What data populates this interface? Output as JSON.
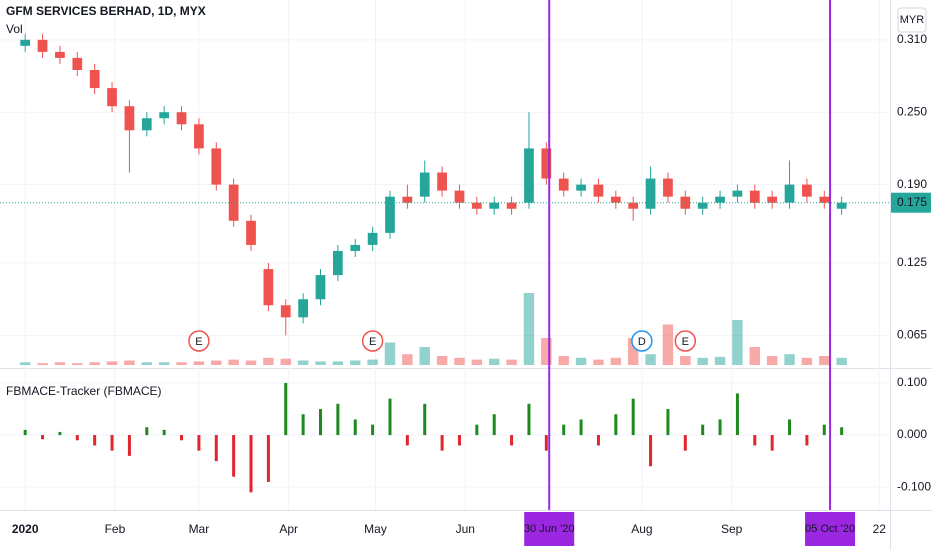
{
  "chart_data": {
    "type": "candlestick",
    "title": "GFM SERVICES BERHAD, 1D, MYX",
    "currency": "MYR",
    "x": [
      1,
      7,
      13,
      19,
      25,
      31,
      37,
      43,
      49,
      55,
      61,
      67,
      73,
      79,
      85,
      91,
      97,
      103,
      109,
      115,
      121,
      127,
      133,
      139,
      145,
      151,
      157,
      163,
      169,
      175,
      181,
      187,
      193,
      199,
      205,
      211,
      217,
      223,
      229,
      235,
      241,
      247,
      253,
      259,
      265,
      271,
      277,
      283
    ],
    "open": [
      0.305,
      0.31,
      0.3,
      0.295,
      0.285,
      0.27,
      0.255,
      0.235,
      0.245,
      0.25,
      0.24,
      0.22,
      0.19,
      0.16,
      0.12,
      0.09,
      0.08,
      0.095,
      0.115,
      0.135,
      0.14,
      0.15,
      0.18,
      0.18,
      0.2,
      0.185,
      0.175,
      0.17,
      0.175,
      0.175,
      0.22,
      0.195,
      0.185,
      0.19,
      0.18,
      0.175,
      0.17,
      0.195,
      0.18,
      0.17,
      0.175,
      0.18,
      0.185,
      0.18,
      0.175,
      0.19,
      0.18,
      0.17
    ],
    "high": [
      0.315,
      0.315,
      0.305,
      0.3,
      0.29,
      0.275,
      0.26,
      0.25,
      0.255,
      0.255,
      0.245,
      0.225,
      0.195,
      0.165,
      0.125,
      0.095,
      0.1,
      0.12,
      0.14,
      0.145,
      0.155,
      0.185,
      0.19,
      0.21,
      0.205,
      0.19,
      0.18,
      0.18,
      0.18,
      0.25,
      0.225,
      0.2,
      0.195,
      0.195,
      0.185,
      0.18,
      0.205,
      0.2,
      0.185,
      0.18,
      0.185,
      0.19,
      0.19,
      0.185,
      0.21,
      0.195,
      0.185,
      0.18
    ],
    "low": [
      0.3,
      0.295,
      0.29,
      0.28,
      0.265,
      0.25,
      0.2,
      0.23,
      0.24,
      0.235,
      0.215,
      0.185,
      0.155,
      0.135,
      0.085,
      0.065,
      0.075,
      0.09,
      0.11,
      0.13,
      0.135,
      0.145,
      0.17,
      0.175,
      0.18,
      0.17,
      0.165,
      0.165,
      0.165,
      0.17,
      0.19,
      0.18,
      0.18,
      0.175,
      0.17,
      0.16,
      0.165,
      0.175,
      0.165,
      0.165,
      0.17,
      0.175,
      0.17,
      0.17,
      0.17,
      0.175,
      0.17,
      0.165
    ],
    "close": [
      0.31,
      0.3,
      0.295,
      0.285,
      0.27,
      0.255,
      0.235,
      0.245,
      0.25,
      0.24,
      0.22,
      0.19,
      0.16,
      0.14,
      0.09,
      0.08,
      0.095,
      0.115,
      0.135,
      0.14,
      0.15,
      0.18,
      0.175,
      0.2,
      0.185,
      0.175,
      0.17,
      0.175,
      0.17,
      0.22,
      0.195,
      0.185,
      0.19,
      0.18,
      0.175,
      0.17,
      0.195,
      0.18,
      0.17,
      0.175,
      0.18,
      0.185,
      0.175,
      0.175,
      0.19,
      0.18,
      0.175,
      0.175
    ],
    "up_color": "#26a69a",
    "down_color": "#ef5350",
    "xlim": [
      -7.7,
      299.7
    ],
    "xticks": [
      {
        "value": 1,
        "label": "2020"
      },
      {
        "value": 32,
        "label": "Feb"
      },
      {
        "value": 61,
        "label": "Mar"
      },
      {
        "value": 92,
        "label": "Apr"
      },
      {
        "value": 122,
        "label": "May"
      },
      {
        "value": 153,
        "label": "Jun"
      },
      {
        "value": 182,
        "label": "30 Jun '20",
        "highlight": true
      },
      {
        "value": 214,
        "label": "Aug"
      },
      {
        "value": 245,
        "label": "Sep"
      },
      {
        "value": 279,
        "label": "05 Oct '20",
        "highlight": true
      },
      {
        "value": 296,
        "label": "22"
      }
    ],
    "highlight_color": "#9c27e0",
    "ylim": [
      0.038,
      0.343
    ],
    "yticks": [
      {
        "value": 0.31,
        "label": "0.310"
      },
      {
        "value": 0.25,
        "label": "0.250"
      },
      {
        "value": 0.19,
        "label": "0.190"
      },
      0.125,
      0.065
    ],
    "last_price": 0.175,
    "events": [
      {
        "x": 61,
        "label": "E",
        "color": "#ef5350"
      },
      {
        "x": 121,
        "label": "E",
        "color": "#ef5350"
      },
      {
        "x": 214,
        "label": "D",
        "color": "#2196f3"
      },
      {
        "x": 229,
        "label": "E",
        "color": "#ef5350"
      }
    ],
    "volume": {
      "label": "Vol",
      "ylim": [
        0,
        100
      ],
      "values": [
        3,
        2,
        3,
        2,
        3,
        4,
        5,
        3,
        3,
        3,
        4,
        5,
        6,
        5,
        8,
        7,
        5,
        4,
        4,
        5,
        6,
        25,
        12,
        20,
        10,
        8,
        6,
        7,
        6,
        80,
        30,
        10,
        8,
        6,
        8,
        30,
        12,
        45,
        10,
        8,
        9,
        50,
        20,
        10,
        12,
        8,
        10,
        8
      ]
    },
    "indicator": {
      "name": "FBMACE-Tracker (FBMACE)",
      "up_color": "#1e8a1e",
      "down_color": "#e0262b",
      "ylim": [
        -0.144,
        0.125
      ],
      "yticks": [
        {
          "value": 0.1,
          "label": "0.100"
        },
        {
          "value": 0,
          "label": "0.000"
        },
        {
          "value": -0.1,
          "label": "-0.100"
        }
      ],
      "values": [
        0.01,
        -0.008,
        0.006,
        -0.01,
        -0.02,
        -0.03,
        -0.04,
        0.015,
        0.01,
        -0.01,
        -0.03,
        -0.05,
        -0.08,
        -0.11,
        -0.09,
        0.1,
        0.04,
        0.05,
        0.06,
        0.03,
        0.02,
        0.07,
        -0.02,
        0.06,
        -0.03,
        -0.02,
        0.02,
        0.04,
        -0.02,
        0.06,
        -0.03,
        0.02,
        0.03,
        -0.02,
        0.04,
        0.07,
        -0.06,
        0.05,
        -0.03,
        0.02,
        0.03,
        0.08,
        -0.02,
        -0.03,
        0.03,
        -0.02,
        0.02,
        0.015
      ]
    }
  }
}
